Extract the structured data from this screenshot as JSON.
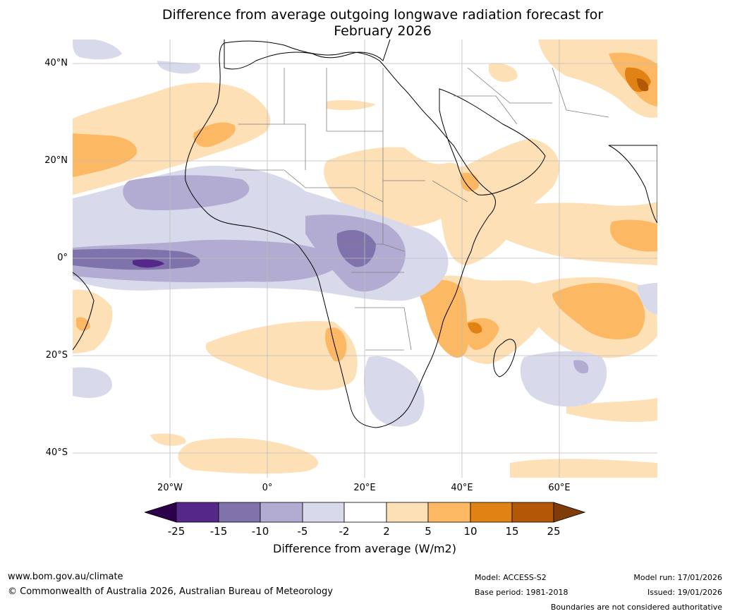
{
  "title_line1": "Difference from average outgoing longwave radiation forecast for",
  "title_line2": "February 2026",
  "map": {
    "lat_labels": [
      "40°N",
      "20°N",
      "0°",
      "20°S",
      "40°S"
    ],
    "lon_labels": [
      "20°W",
      "0°",
      "20°E",
      "40°E",
      "60°E"
    ],
    "anomaly_features": [
      {
        "name": "equatorial-atlantic-negative",
        "sign": "negative",
        "min_value": -15
      },
      {
        "name": "congo-basin-negative",
        "sign": "negative",
        "min_value": -15
      },
      {
        "name": "west-africa-negative",
        "sign": "negative",
        "min_value": -10
      },
      {
        "name": "southern-africa-negative",
        "sign": "negative",
        "min_value": -5
      },
      {
        "name": "north-atlantic-positive",
        "sign": "positive",
        "max_value": 10
      },
      {
        "name": "east-africa-positive",
        "sign": "positive",
        "max_value": 15
      },
      {
        "name": "south-indian-ocean-positive",
        "sign": "positive",
        "max_value": 10
      },
      {
        "name": "south-atlantic-positive",
        "sign": "positive",
        "max_value": 5
      },
      {
        "name": "middle-east-positive",
        "sign": "positive",
        "max_value": 25
      }
    ]
  },
  "colorbar": {
    "ticks": [
      "-25",
      "-15",
      "-10",
      "-5",
      "-2",
      "2",
      "5",
      "10",
      "15",
      "25"
    ],
    "colors": [
      "#2d004b",
      "#542788",
      "#8073ac",
      "#b2abd2",
      "#d8daeb",
      "#ffffff",
      "#fee0b6",
      "#fdb863",
      "#e08214",
      "#b35806",
      "#7f3b08"
    ],
    "title": "Difference from average (W/m2)"
  },
  "footer": {
    "website": "www.bom.gov.au/climate",
    "copyright": "© Commonwealth of Australia 2026, Australian Bureau of Meteorology",
    "model": "Model: ACCESS-S2",
    "base_period": "Base period: 1981-2018",
    "model_run": "Model run: 17/01/2026",
    "issued": "Issued: 19/01/2026",
    "disclaimer": "Boundaries are not considered authoritative"
  }
}
